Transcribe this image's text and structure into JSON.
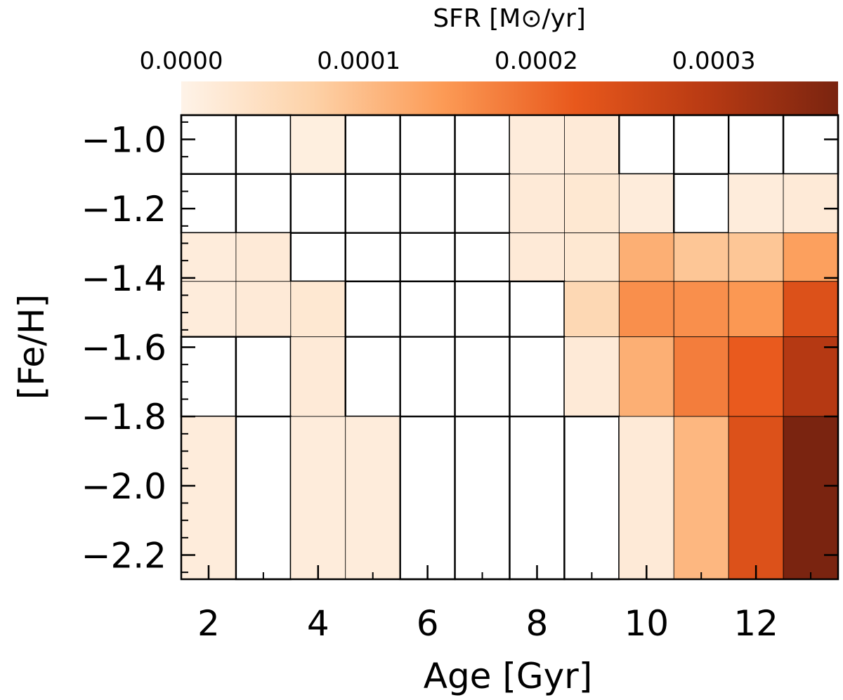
{
  "chart_data": {
    "type": "heatmap",
    "title": "",
    "xlabel": "Age [Gyr]",
    "ylabel": "[Fe/H]",
    "colorbar": {
      "label": "SFR [M⊙/yr]",
      "range": [
        0.0,
        0.00037
      ],
      "ticks": [
        0.0,
        0.0001,
        0.0002,
        0.0003
      ],
      "tick_labels": [
        "0.0000",
        "0.0001",
        "0.0002",
        "0.0003"
      ],
      "colors": [
        "#fef3e8",
        "#fdd2a8",
        "#fc9a55",
        "#e8581c",
        "#b83a13",
        "#7a2410"
      ]
    },
    "xlim": [
      1.5,
      13.5
    ],
    "ylim": [
      -2.27,
      -0.93
    ],
    "x_ticks": [
      2,
      4,
      6,
      8,
      10,
      12
    ],
    "x_tick_labels": [
      "2",
      "4",
      "6",
      "8",
      "10",
      "12"
    ],
    "y_ticks": [
      -1.0,
      -1.2,
      -1.4,
      -1.6,
      -1.8,
      -2.0,
      -2.2
    ],
    "y_tick_labels": [
      "−1.0",
      "−1.2",
      "−1.4",
      "−1.6",
      "−1.8",
      "−2.0",
      "−2.2"
    ],
    "x_bin_edges": [
      1.5,
      2.5,
      3.5,
      4.5,
      5.5,
      6.5,
      7.5,
      8.5,
      9.5,
      10.5,
      11.5,
      12.5,
      13.5
    ],
    "y_bin_edges": [
      -0.93,
      -1.1,
      -1.27,
      -1.41,
      -1.57,
      -1.8,
      -2.27
    ],
    "y_bin_labels": [
      "-1.0 bin",
      "-1.2 bin",
      "-1.35 bin",
      "-1.5 bin",
      "-1.7 bin",
      "-2.0 bin"
    ],
    "sfr_values": [
      [
        0,
        0,
        1e-05,
        0,
        0,
        0,
        1.5e-05,
        2e-05,
        0,
        0,
        0,
        0
      ],
      [
        0,
        0,
        0,
        0,
        0,
        0,
        2e-05,
        2.5e-05,
        1.5e-05,
        0,
        1.5e-05,
        2e-05
      ],
      [
        1.5e-05,
        2e-05,
        0,
        0,
        0,
        0,
        2e-05,
        2.5e-05,
        0.00012,
        9e-05,
        9e-05,
        0.00014
      ],
      [
        1.5e-05,
        2e-05,
        2.5e-05,
        0,
        0,
        0,
        0,
        6e-05,
        0.00016,
        0.00016,
        0.00015,
        0.00024
      ],
      [
        0,
        0,
        2e-05,
        0,
        0,
        0,
        0,
        2e-05,
        0.00012,
        0.00018,
        0.00022,
        0.0003
      ],
      [
        1.5e-05,
        0,
        1.5e-05,
        1.5e-05,
        0,
        0,
        0,
        0,
        2e-05,
        0.00011,
        0.00024,
        0.00037
      ]
    ]
  }
}
